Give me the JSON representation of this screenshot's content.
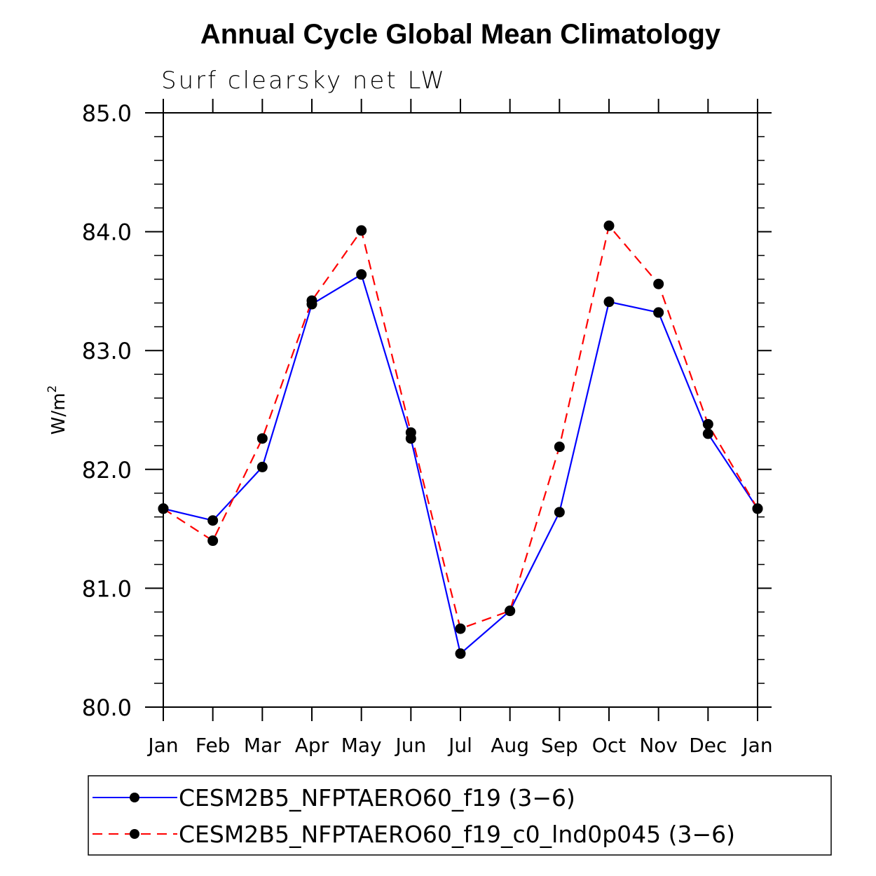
{
  "chart_data": {
    "type": "line",
    "title": "Annual Cycle Global Mean Climatology",
    "subtitle": "Surf clearsky net LW",
    "ylabel": "W/m",
    "ylabel_superscript": "2",
    "xlabel": "",
    "categories": [
      "Jan",
      "Feb",
      "Mar",
      "Apr",
      "May",
      "Jun",
      "Jul",
      "Aug",
      "Sep",
      "Oct",
      "Nov",
      "Dec",
      "Jan"
    ],
    "ylim": [
      80.0,
      85.0
    ],
    "yticks": [
      80.0,
      81.0,
      82.0,
      83.0,
      84.0,
      85.0
    ],
    "ytick_labels": [
      "80.0",
      "81.0",
      "82.0",
      "83.0",
      "84.0",
      "85.0"
    ],
    "series": [
      {
        "name": "CESM2B5_NFPTAERO60_f19 (3−6)",
        "color": "#0000ff",
        "dash": "solid",
        "values": [
          81.67,
          81.57,
          82.02,
          83.39,
          83.64,
          82.26,
          80.45,
          80.81,
          81.64,
          83.41,
          83.32,
          82.3,
          81.67
        ]
      },
      {
        "name": "CESM2B5_NFPTAERO60_f19_c0_lnd0p045 (3−6)",
        "color": "#ff0000",
        "dash": "dashed",
        "values": [
          81.67,
          81.4,
          82.26,
          83.42,
          84.01,
          82.31,
          80.66,
          80.81,
          82.19,
          84.05,
          83.56,
          82.38,
          81.67
        ]
      }
    ],
    "legend_position": "bottom"
  }
}
